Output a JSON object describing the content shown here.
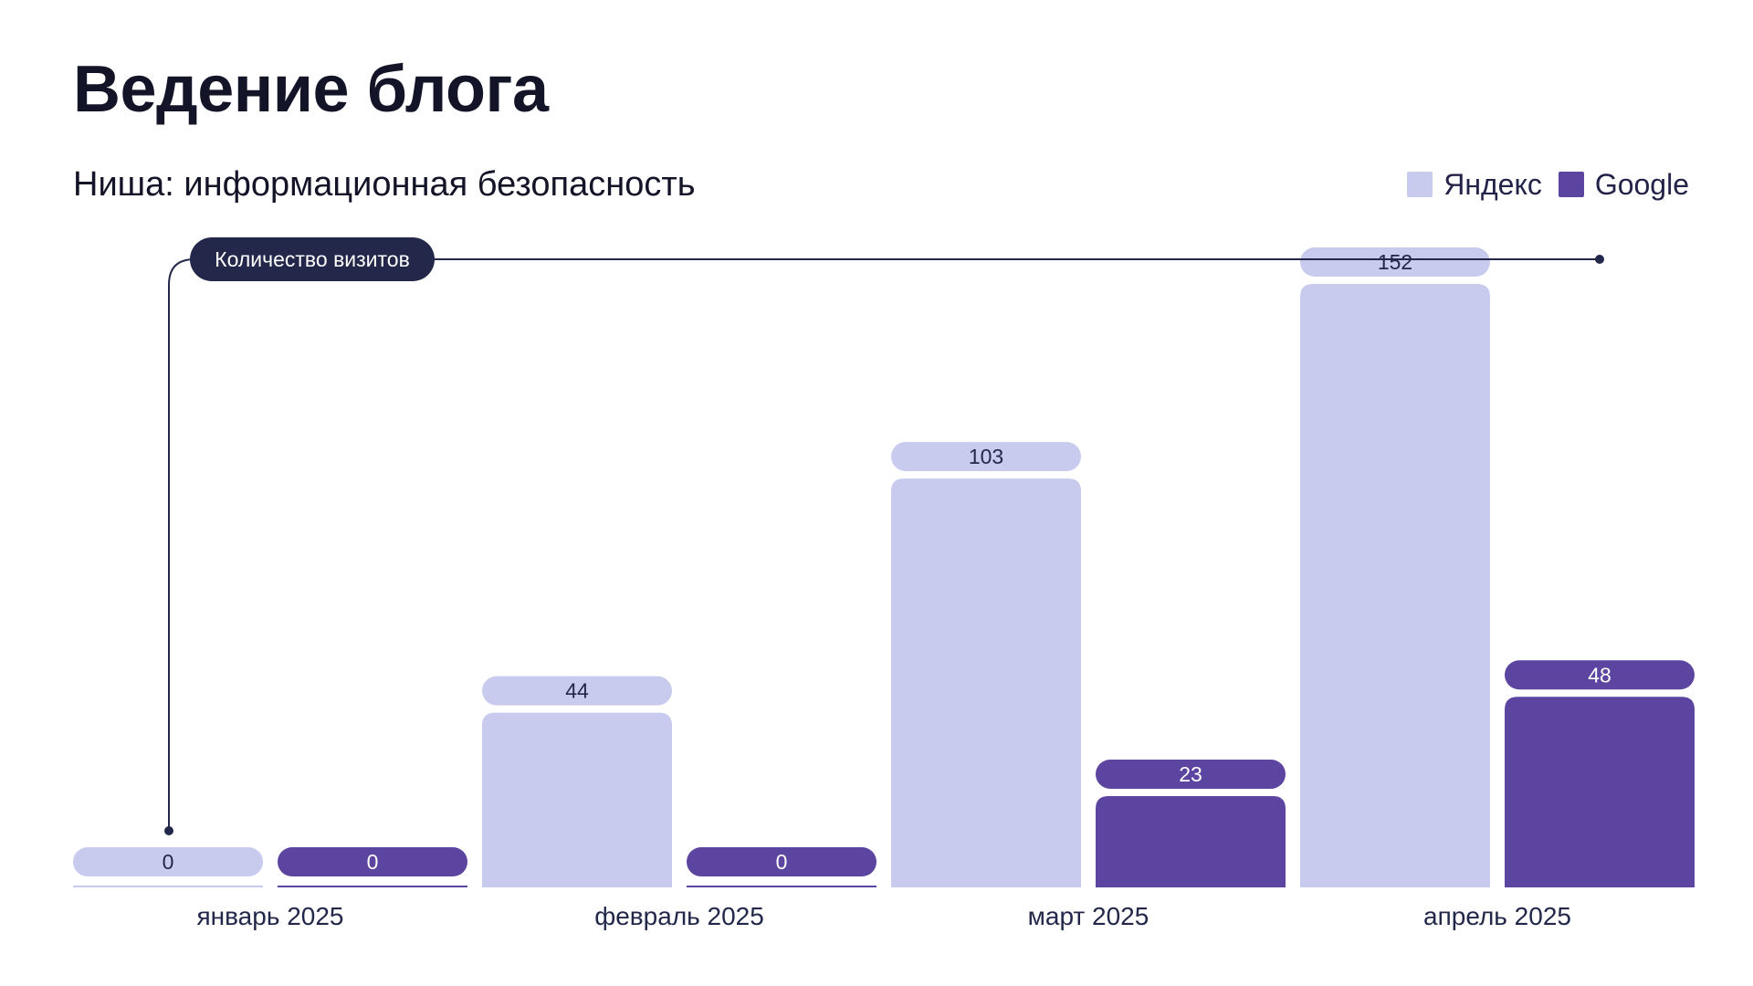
{
  "colors": {
    "yandex": "#c8cbee",
    "google": "#5c45a0",
    "ink": "#23284a",
    "label_on_google": "#ffffff",
    "label_on_yandex": "#23284a"
  },
  "chart_data": {
    "type": "bar",
    "title": "Ведение блога",
    "subtitle": "Ниша: информационная безопасность",
    "axis_callout": "Количество визитов",
    "categories": [
      "январь 2025",
      "февраль 2025",
      "март 2025",
      "апрель 2025"
    ],
    "series": [
      {
        "name": "Яндекс",
        "color": "#c8cbee",
        "values": [
          0,
          44,
          103,
          152
        ]
      },
      {
        "name": "Google",
        "color": "#5c45a0",
        "values": [
          0,
          0,
          23,
          48
        ]
      }
    ],
    "ylim": [
      0,
      152
    ],
    "grid": false,
    "legend": "top-right"
  }
}
